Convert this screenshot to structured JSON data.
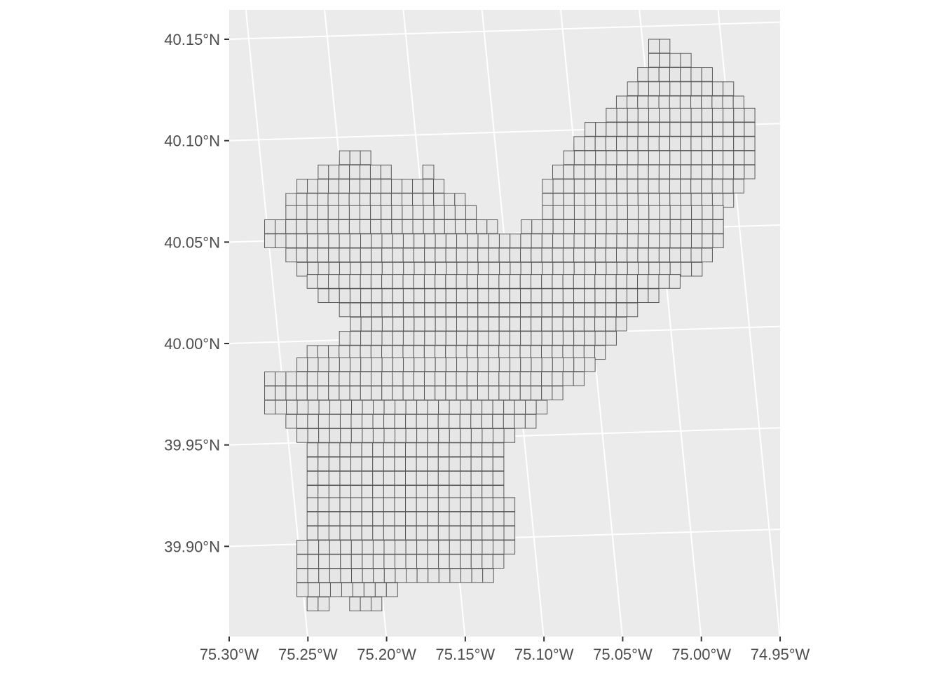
{
  "colors": {
    "panel_background": "#ebebeb",
    "grid_lines": "#ffffff",
    "cell_fill": "#e6e6e6",
    "cell_border": "#595959",
    "tick_text": "#4d4d4d"
  },
  "chart_data": {
    "type": "map",
    "map_kind": "square grid tessellation of a region",
    "title": "",
    "xlabel": "",
    "ylabel": "",
    "xlim": [
      -75.3,
      -74.95
    ],
    "ylim": [
      39.855,
      40.16
    ],
    "x_ticks": [
      {
        "value": -75.3,
        "label": "75.30°W"
      },
      {
        "value": -75.25,
        "label": "75.25°W"
      },
      {
        "value": -75.2,
        "label": "75.20°W"
      },
      {
        "value": -75.15,
        "label": "75.15°W"
      },
      {
        "value": -75.1,
        "label": "75.10°W"
      },
      {
        "value": -75.05,
        "label": "75.05°W"
      },
      {
        "value": -75.0,
        "label": "75.00°W"
      },
      {
        "value": -74.95,
        "label": "74.95°W"
      }
    ],
    "y_ticks": [
      {
        "value": 40.15,
        "label": "40.15°N"
      },
      {
        "value": 40.1,
        "label": "40.10°N"
      },
      {
        "value": 40.05,
        "label": "40.05°N"
      },
      {
        "value": 40.0,
        "label": "40.00°N"
      },
      {
        "value": 39.95,
        "label": "39.95°N"
      },
      {
        "value": 39.9,
        "label": "39.90°N"
      }
    ],
    "grid": true,
    "legend": "none",
    "cell_size_deg": 0.0068,
    "rows_from_top": [
      {
        "top_lat": 40.15,
        "spans": [
          [
            -75.0335,
            -75.02
          ]
        ]
      },
      {
        "top_lat": 40.143,
        "spans": [
          [
            -75.0335,
            -75.0065
          ]
        ]
      },
      {
        "top_lat": 40.136,
        "spans": [
          [
            -75.0405,
            -74.993
          ]
        ]
      },
      {
        "top_lat": 40.129,
        "spans": [
          [
            -75.047,
            -74.9795
          ]
        ]
      },
      {
        "top_lat": 40.122,
        "spans": [
          [
            -75.054,
            -74.973
          ]
        ]
      },
      {
        "top_lat": 40.116,
        "spans": [
          [
            -75.0605,
            -74.966
          ]
        ]
      },
      {
        "top_lat": 40.109,
        "spans": [
          [
            -75.074,
            -74.966
          ]
        ]
      },
      {
        "top_lat": 40.102,
        "spans": [
          [
            -75.081,
            -74.966
          ]
        ]
      },
      {
        "top_lat": 40.095,
        "spans": [
          [
            -75.23,
            -75.21
          ],
          [
            -75.0875,
            -74.966
          ]
        ]
      },
      {
        "top_lat": 40.088,
        "spans": [
          [
            -75.2435,
            -75.197
          ],
          [
            -75.177,
            -75.17
          ],
          [
            -75.0945,
            -74.966
          ]
        ]
      },
      {
        "top_lat": 40.081,
        "spans": [
          [
            -75.257,
            -75.1635
          ],
          [
            -75.101,
            -74.973
          ]
        ]
      },
      {
        "top_lat": 40.074,
        "spans": [
          [
            -75.264,
            -75.15
          ],
          [
            -75.101,
            -74.9795
          ]
        ]
      },
      {
        "top_lat": 40.068,
        "spans": [
          [
            -75.264,
            -75.143
          ],
          [
            -75.101,
            -74.986
          ]
        ]
      },
      {
        "top_lat": 40.061,
        "spans": [
          [
            -75.2775,
            -75.1295
          ],
          [
            -75.1145,
            -74.986
          ]
        ]
      },
      {
        "top_lat": 40.054,
        "spans": [
          [
            -75.2775,
            -74.986
          ]
        ]
      },
      {
        "top_lat": 40.047,
        "spans": [
          [
            -75.264,
            -74.993
          ]
        ]
      },
      {
        "top_lat": 40.04,
        "spans": [
          [
            -75.257,
            -74.9995
          ]
        ]
      },
      {
        "top_lat": 40.034,
        "spans": [
          [
            -75.2505,
            -75.0135
          ]
        ]
      },
      {
        "top_lat": 40.027,
        "spans": [
          [
            -75.2435,
            -75.027
          ]
        ]
      },
      {
        "top_lat": 40.02,
        "spans": [
          [
            -75.23,
            -75.0405
          ]
        ]
      },
      {
        "top_lat": 40.013,
        "spans": [
          [
            -75.223,
            -75.0475
          ]
        ]
      },
      {
        "top_lat": 40.006,
        "spans": [
          [
            -75.23,
            -75.054
          ]
        ]
      },
      {
        "top_lat": 39.999,
        "spans": [
          [
            -75.2505,
            -75.061
          ]
        ]
      },
      {
        "top_lat": 39.993,
        "spans": [
          [
            -75.257,
            -75.0675
          ]
        ]
      },
      {
        "top_lat": 39.986,
        "spans": [
          [
            -75.2775,
            -75.0745
          ]
        ]
      },
      {
        "top_lat": 39.979,
        "spans": [
          [
            -75.2775,
            -75.088
          ]
        ]
      },
      {
        "top_lat": 39.972,
        "spans": [
          [
            -75.2775,
            -75.098
          ]
        ]
      },
      {
        "top_lat": 39.965,
        "spans": [
          [
            -75.264,
            -75.105
          ]
        ]
      },
      {
        "top_lat": 39.958,
        "spans": [
          [
            -75.257,
            -75.1185
          ]
        ]
      },
      {
        "top_lat": 39.951,
        "spans": [
          [
            -75.2505,
            -75.1255
          ]
        ]
      },
      {
        "top_lat": 39.944,
        "spans": [
          [
            -75.2505,
            -75.1255
          ]
        ]
      },
      {
        "top_lat": 39.937,
        "spans": [
          [
            -75.2505,
            -75.1255
          ]
        ]
      },
      {
        "top_lat": 39.93,
        "spans": [
          [
            -75.2505,
            -75.1255
          ]
        ]
      },
      {
        "top_lat": 39.924,
        "spans": [
          [
            -75.2505,
            -75.1185
          ]
        ]
      },
      {
        "top_lat": 39.917,
        "spans": [
          [
            -75.2505,
            -75.1185
          ]
        ]
      },
      {
        "top_lat": 39.91,
        "spans": [
          [
            -75.2505,
            -75.1185
          ]
        ]
      },
      {
        "top_lat": 39.903,
        "spans": [
          [
            -75.257,
            -75.1185
          ]
        ]
      },
      {
        "top_lat": 39.896,
        "spans": [
          [
            -75.257,
            -75.1255
          ]
        ]
      },
      {
        "top_lat": 39.889,
        "spans": [
          [
            -75.257,
            -75.132
          ]
        ]
      },
      {
        "top_lat": 39.882,
        "spans": [
          [
            -75.257,
            -75.193
          ]
        ]
      },
      {
        "top_lat": 39.875,
        "spans": [
          [
            -75.2505,
            -75.2365
          ],
          [
            -75.2235,
            -75.203
          ]
        ]
      }
    ]
  }
}
